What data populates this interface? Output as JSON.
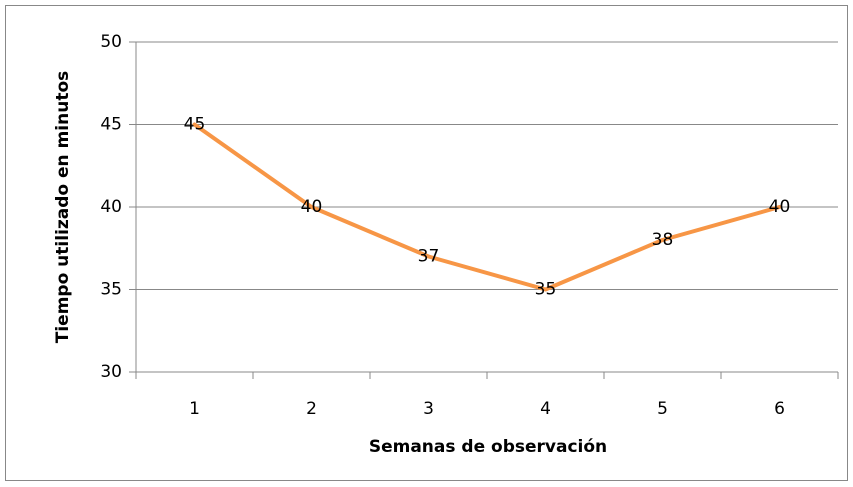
{
  "chart_data": {
    "type": "line",
    "xlabel": "Semanas de observación",
    "ylabel": "Tiempo utilizado en minutos",
    "categories": [
      "1",
      "2",
      "3",
      "4",
      "5",
      "6"
    ],
    "series": [
      {
        "name": "Tiempo",
        "color": "#f79646",
        "values": [
          45,
          40,
          37,
          35,
          38,
          40
        ]
      }
    ],
    "ylim": [
      30,
      50
    ],
    "yticks": [
      30,
      35,
      40,
      45,
      50
    ],
    "grid": true,
    "data_labels": true
  }
}
